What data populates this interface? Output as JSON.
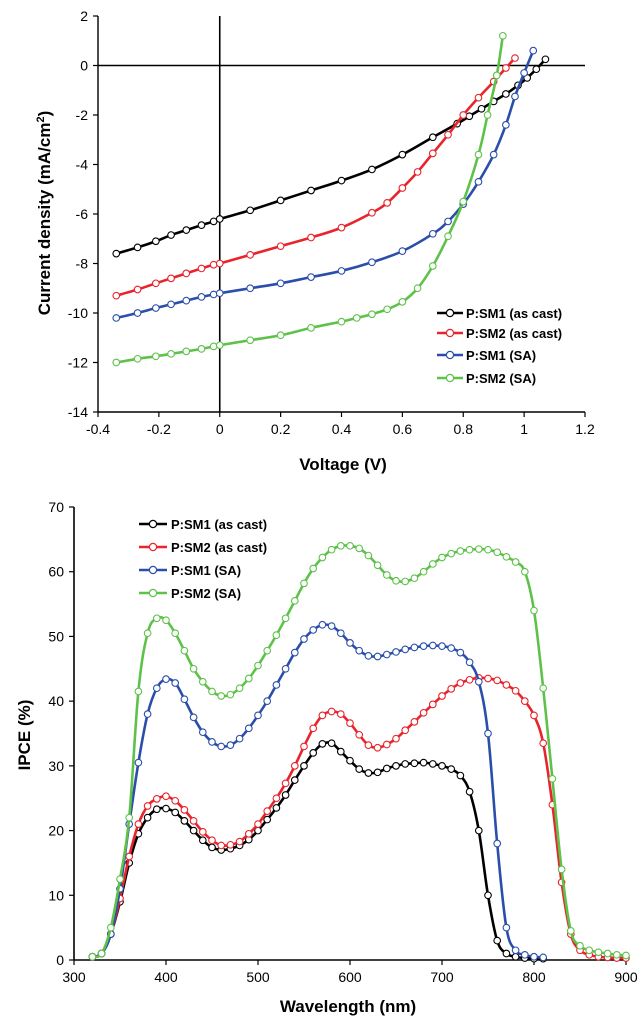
{
  "chart_data": [
    {
      "type": "line",
      "xlabel": "Voltage (V)",
      "ylabel_main": "Current density (mA/cm",
      "ylabel_sup": "2",
      "ylabel_end": ")",
      "xlim": [
        -0.4,
        1.2
      ],
      "ylim": [
        -14,
        2
      ],
      "xticks": [
        -0.4,
        -0.2,
        0,
        0.2,
        0.4,
        0.6,
        0.8,
        1,
        1.2
      ],
      "xtick_labels": [
        "-0.4",
        "-0.2",
        "0",
        "0.2",
        "0.4",
        "0.6",
        "0.8",
        "1",
        "1.2"
      ],
      "yticks": [
        -14,
        -12,
        -10,
        -8,
        -6,
        -4,
        -2,
        0,
        2
      ],
      "ytick_labels": [
        "-14",
        "-12",
        "-10",
        "-8",
        "-6",
        "-4",
        "-2",
        "0",
        "2"
      ],
      "grid": false,
      "legend_position": "bottom-right",
      "series": [
        {
          "name": "P:SM1 (as cast)",
          "color": "#000000",
          "x": [
            -0.34,
            -0.27,
            -0.21,
            -0.16,
            -0.11,
            -0.06,
            -0.02,
            0,
            0.1,
            0.2,
            0.3,
            0.4,
            0.5,
            0.6,
            0.7,
            0.78,
            0.82,
            0.86,
            0.9,
            0.94,
            0.98,
            1.01,
            1.04,
            1.07
          ],
          "y": [
            -7.6,
            -7.35,
            -7.1,
            -6.85,
            -6.65,
            -6.45,
            -6.3,
            -6.2,
            -5.85,
            -5.45,
            -5.05,
            -4.65,
            -4.2,
            -3.6,
            -2.9,
            -2.35,
            -2.05,
            -1.75,
            -1.45,
            -1.15,
            -0.8,
            -0.5,
            -0.15,
            0.25
          ]
        },
        {
          "name": "P:SM2 (as cast)",
          "color": "#e8242c",
          "x": [
            -0.34,
            -0.27,
            -0.21,
            -0.16,
            -0.11,
            -0.06,
            -0.02,
            0,
            0.1,
            0.2,
            0.3,
            0.4,
            0.5,
            0.55,
            0.6,
            0.65,
            0.7,
            0.75,
            0.8,
            0.85,
            0.9,
            0.94,
            0.97
          ],
          "y": [
            -9.3,
            -9.05,
            -8.8,
            -8.6,
            -8.4,
            -8.2,
            -8.05,
            -8.0,
            -7.65,
            -7.3,
            -6.95,
            -6.55,
            -5.95,
            -5.55,
            -4.95,
            -4.3,
            -3.55,
            -2.8,
            -2.0,
            -1.3,
            -0.65,
            -0.1,
            0.3
          ]
        },
        {
          "name": "P:SM1 (SA)",
          "color": "#2a4eaa",
          "x": [
            -0.34,
            -0.27,
            -0.21,
            -0.16,
            -0.11,
            -0.06,
            -0.02,
            0,
            0.1,
            0.2,
            0.3,
            0.4,
            0.5,
            0.6,
            0.7,
            0.75,
            0.8,
            0.85,
            0.9,
            0.94,
            0.97,
            1.0,
            1.03
          ],
          "y": [
            -10.2,
            -10.0,
            -9.8,
            -9.65,
            -9.5,
            -9.35,
            -9.25,
            -9.2,
            -9.0,
            -8.8,
            -8.55,
            -8.3,
            -7.95,
            -7.5,
            -6.8,
            -6.3,
            -5.6,
            -4.7,
            -3.6,
            -2.4,
            -1.25,
            -0.3,
            0.6
          ]
        },
        {
          "name": "P:SM2 (SA)",
          "color": "#5ec24a",
          "x": [
            -0.34,
            -0.27,
            -0.21,
            -0.16,
            -0.11,
            -0.06,
            -0.02,
            0,
            0.1,
            0.2,
            0.3,
            0.4,
            0.45,
            0.5,
            0.55,
            0.6,
            0.65,
            0.7,
            0.75,
            0.8,
            0.85,
            0.88,
            0.91,
            0.93
          ],
          "y": [
            -12.0,
            -11.85,
            -11.75,
            -11.65,
            -11.55,
            -11.45,
            -11.35,
            -11.3,
            -11.1,
            -10.9,
            -10.6,
            -10.35,
            -10.2,
            -10.05,
            -9.85,
            -9.55,
            -9.0,
            -8.1,
            -6.9,
            -5.5,
            -3.6,
            -2.0,
            -0.4,
            1.2
          ]
        }
      ]
    },
    {
      "type": "line",
      "xlabel": "Wavelength (nm)",
      "ylabel": "IPCE (%)",
      "xlim": [
        300,
        900
      ],
      "ylim": [
        0,
        70
      ],
      "xticks": [
        300,
        400,
        500,
        600,
        700,
        800,
        900
      ],
      "xtick_labels": [
        "300",
        "400",
        "500",
        "600",
        "700",
        "800",
        "900"
      ],
      "yticks": [
        0,
        10,
        20,
        30,
        40,
        50,
        60,
        70
      ],
      "ytick_labels": [
        "0",
        "10",
        "20",
        "30",
        "40",
        "50",
        "60",
        "70"
      ],
      "grid": false,
      "legend_position": "top-left",
      "series": [
        {
          "name": "P:SM1 (as cast)",
          "color": "#000000",
          "x": [
            320,
            330,
            340,
            350,
            360,
            370,
            380,
            390,
            400,
            410,
            420,
            430,
            440,
            450,
            460,
            470,
            480,
            490,
            500,
            510,
            520,
            530,
            540,
            550,
            560,
            570,
            580,
            590,
            600,
            610,
            620,
            630,
            640,
            650,
            660,
            670,
            680,
            690,
            700,
            710,
            720,
            730,
            740,
            750,
            760,
            770,
            780,
            790,
            800,
            810
          ],
          "y": [
            0.5,
            1.0,
            4.0,
            9.0,
            15.0,
            19.5,
            22.0,
            23.3,
            23.4,
            22.8,
            21.5,
            20.0,
            18.5,
            17.4,
            17.0,
            17.2,
            17.7,
            18.6,
            20.0,
            21.7,
            23.5,
            25.5,
            27.8,
            30.0,
            32.0,
            33.4,
            33.5,
            32.2,
            30.8,
            29.5,
            28.9,
            29.0,
            29.6,
            30.0,
            30.3,
            30.4,
            30.5,
            30.3,
            30.0,
            29.5,
            28.5,
            26.0,
            20.0,
            10.0,
            3.0,
            1.0,
            0.5,
            0.3,
            0.2,
            0.2
          ]
        },
        {
          "name": "P:SM2 (as cast)",
          "color": "#e8242c",
          "x": [
            320,
            330,
            340,
            350,
            360,
            370,
            380,
            390,
            400,
            410,
            420,
            430,
            440,
            450,
            460,
            470,
            480,
            490,
            500,
            510,
            520,
            530,
            540,
            550,
            560,
            570,
            580,
            590,
            600,
            610,
            620,
            630,
            640,
            650,
            660,
            670,
            680,
            690,
            700,
            710,
            720,
            730,
            740,
            750,
            760,
            770,
            780,
            790,
            800,
            810,
            820,
            830,
            840,
            850,
            860,
            870,
            880,
            890,
            900
          ],
          "y": [
            0.5,
            1.0,
            4.0,
            9.5,
            16.0,
            21.0,
            23.8,
            24.9,
            25.3,
            24.6,
            23.2,
            21.5,
            19.8,
            18.5,
            17.7,
            17.8,
            18.3,
            19.5,
            21.0,
            23.0,
            25.0,
            27.3,
            30.0,
            33.0,
            35.8,
            37.8,
            38.4,
            38.0,
            36.6,
            34.8,
            33.2,
            32.8,
            33.3,
            34.2,
            35.5,
            36.8,
            38.2,
            39.5,
            40.8,
            41.9,
            42.8,
            43.3,
            43.6,
            43.5,
            43.2,
            42.5,
            41.6,
            40.0,
            37.8,
            33.5,
            24.0,
            12.0,
            4.0,
            1.5,
            0.8,
            0.5,
            0.4,
            0.3,
            0.3
          ]
        },
        {
          "name": "P:SM1 (SA)",
          "color": "#2a4eaa",
          "x": [
            320,
            330,
            340,
            350,
            360,
            370,
            380,
            390,
            400,
            410,
            420,
            430,
            440,
            450,
            460,
            470,
            480,
            490,
            500,
            510,
            520,
            530,
            540,
            550,
            560,
            570,
            580,
            590,
            600,
            610,
            620,
            630,
            640,
            650,
            660,
            670,
            680,
            690,
            700,
            710,
            720,
            730,
            740,
            750,
            760,
            770,
            780,
            790,
            800,
            810
          ],
          "y": [
            0.5,
            1.0,
            4.0,
            11.0,
            21.0,
            30.5,
            38.0,
            42.0,
            43.4,
            42.8,
            40.3,
            37.5,
            35.2,
            33.7,
            33.0,
            33.2,
            34.2,
            35.8,
            37.8,
            40.0,
            42.5,
            45.0,
            47.5,
            49.6,
            51.0,
            51.8,
            51.6,
            50.5,
            49.0,
            47.8,
            47.0,
            46.9,
            47.2,
            47.6,
            48.0,
            48.3,
            48.5,
            48.6,
            48.5,
            48.2,
            47.5,
            46.0,
            43.0,
            35.0,
            18.0,
            5.0,
            1.5,
            0.8,
            0.5,
            0.4
          ]
        },
        {
          "name": "P:SM2 (SA)",
          "color": "#5ec24a",
          "x": [
            320,
            330,
            340,
            350,
            360,
            370,
            380,
            390,
            400,
            410,
            420,
            430,
            440,
            450,
            460,
            470,
            480,
            490,
            500,
            510,
            520,
            530,
            540,
            550,
            560,
            570,
            580,
            590,
            600,
            610,
            620,
            630,
            640,
            650,
            660,
            670,
            680,
            690,
            700,
            710,
            720,
            730,
            740,
            750,
            760,
            770,
            780,
            790,
            800,
            810,
            820,
            830,
            840,
            850,
            860,
            870,
            880,
            890,
            900
          ],
          "y": [
            0.5,
            1.0,
            5.0,
            12.5,
            22.0,
            41.5,
            50.5,
            52.8,
            52.5,
            50.5,
            47.8,
            45.0,
            43.0,
            41.5,
            40.8,
            41.0,
            42.0,
            43.5,
            45.5,
            47.8,
            50.2,
            52.8,
            55.5,
            58.2,
            60.5,
            62.2,
            63.4,
            64.0,
            64.0,
            63.6,
            62.5,
            61.0,
            59.5,
            58.6,
            58.5,
            59.0,
            60.0,
            61.2,
            62.2,
            62.8,
            63.2,
            63.4,
            63.5,
            63.4,
            63.0,
            62.3,
            61.5,
            60.0,
            54.0,
            42.0,
            28.0,
            14.0,
            4.5,
            2.2,
            1.5,
            1.2,
            1.0,
            0.8,
            0.7
          ]
        }
      ]
    }
  ]
}
